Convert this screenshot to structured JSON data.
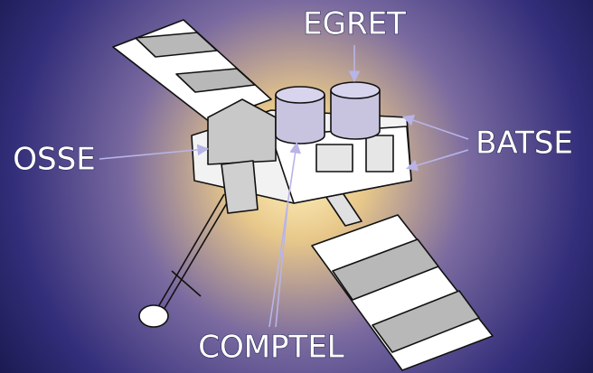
{
  "instruments": [
    "EGRET",
    "OSSE",
    "BATSE",
    "COMPTEL"
  ]
}
